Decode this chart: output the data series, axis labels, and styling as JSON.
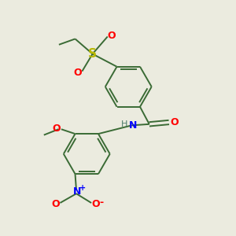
{
  "bg_color": "#ebebdf",
  "bond_color": "#3a6b35",
  "atom_colors": {
    "O": "#ff0000",
    "N": "#0000ff",
    "S": "#b8b800",
    "H": "#4a7a6a",
    "C": "#3a6b35"
  },
  "r": 0.1,
  "lw": 1.4,
  "fsz": 9
}
